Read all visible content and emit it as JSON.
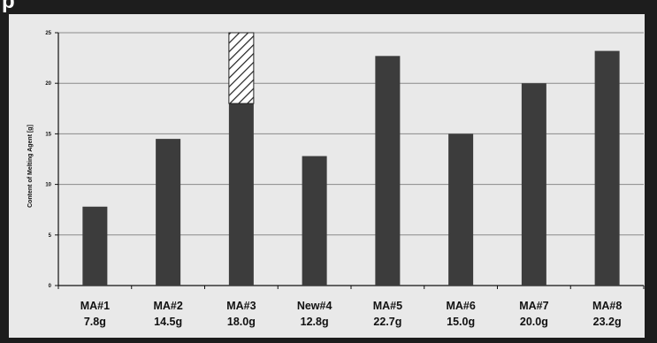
{
  "header": {
    "label": "p"
  },
  "chart_data": {
    "type": "bar",
    "categories": [
      [
        "MA#1",
        "7.8g"
      ],
      [
        "MA#2",
        "14.5g"
      ],
      [
        "MA#3",
        "18.0g"
      ],
      [
        "New#4",
        "12.8g"
      ],
      [
        "MA#5",
        "22.7g"
      ],
      [
        "MA#6",
        "15.0g"
      ],
      [
        "MA#7",
        "20.0g"
      ],
      [
        "MA#8",
        "23.2g"
      ]
    ],
    "values": [
      7.8,
      14.5,
      18.0,
      12.8,
      22.7,
      15.0,
      20.0,
      23.2
    ],
    "hatched_extension": {
      "category_index": 2,
      "from": 18.0,
      "to": 25.0
    },
    "ylabel": "Content of Melting Agent [g]",
    "ylim": [
      0,
      25
    ],
    "yticks": [
      "0",
      "5",
      "10",
      "15",
      "20",
      "25"
    ],
    "grid": true,
    "colors": {
      "bar": "#3c3c3c",
      "background": "#e9e9e9",
      "grid": "#8a8a8a",
      "frame": "#1d1d1d"
    }
  }
}
